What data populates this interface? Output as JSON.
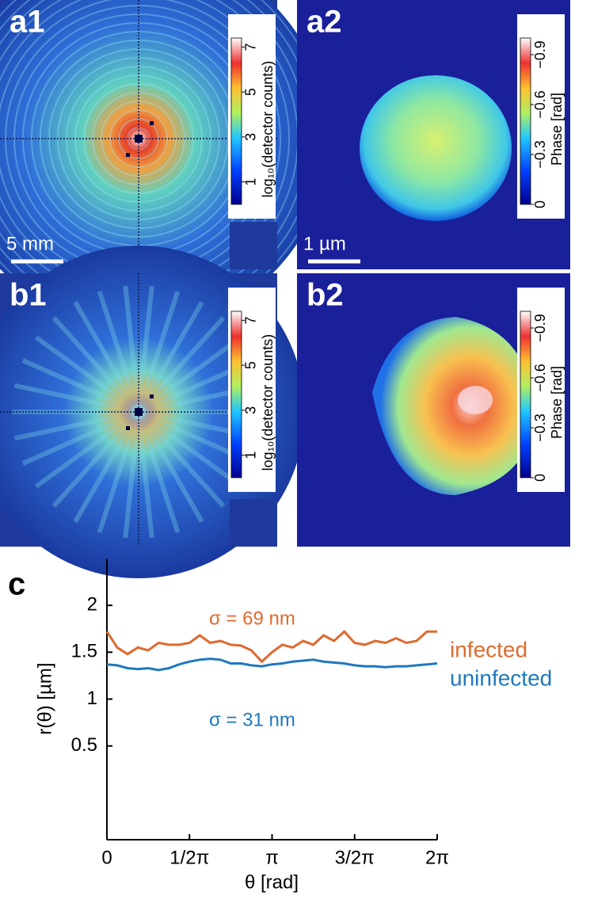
{
  "panels": [
    {
      "label": "a1",
      "scale_bar": "5 mm",
      "colorbar": {
        "title": "log₁₀(detector counts)",
        "ylim": [
          0,
          7.4
        ],
        "yticks": [
          1,
          3,
          5,
          7
        ]
      }
    },
    {
      "label": "a2",
      "scale_bar": "1 µm",
      "colorbar": {
        "title": "Phase [rad]",
        "ylim": [
          0,
          -1.0
        ],
        "yticks": [
          0,
          {
            "value": -0.3,
            "label": "−0.3"
          },
          {
            "value": -0.6,
            "label": "−0.6"
          },
          {
            "value": -0.9,
            "label": "−0.9"
          }
        ]
      }
    },
    {
      "label": "b1",
      "colorbar": {
        "title": "log₁₀(detector counts)",
        "ylim": [
          0,
          7.4
        ],
        "yticks": [
          1,
          3,
          5,
          7
        ]
      }
    },
    {
      "label": "b2",
      "colorbar": {
        "title": "Phase [rad]",
        "ylim": [
          0,
          -1.0
        ],
        "yticks": [
          0,
          {
            "value": -0.3,
            "label": "−0.3"
          },
          {
            "value": -0.6,
            "label": "−0.6"
          },
          {
            "value": -0.9,
            "label": "−0.9"
          }
        ]
      }
    }
  ],
  "chart_data": {
    "type": "line",
    "panel_label": "c",
    "x_label": "θ [rad]",
    "y_label": "r(θ) [µm]",
    "x": [
      0,
      0.196,
      0.393,
      0.589,
      0.785,
      0.982,
      1.178,
      1.374,
      1.571,
      1.767,
      1.963,
      2.16,
      2.356,
      2.553,
      2.749,
      2.945,
      3.142,
      3.338,
      3.534,
      3.731,
      3.927,
      4.123,
      4.32,
      4.516,
      4.712,
      4.909,
      5.105,
      5.301,
      5.498,
      5.694,
      5.89,
      6.087,
      6.283
    ],
    "series": [
      {
        "name": "infected",
        "color": "#de6a2f",
        "values": [
          1.72,
          1.55,
          1.48,
          1.55,
          1.52,
          1.6,
          1.58,
          1.58,
          1.6,
          1.68,
          1.6,
          1.62,
          1.58,
          1.57,
          1.52,
          1.4,
          1.5,
          1.58,
          1.55,
          1.62,
          1.58,
          1.68,
          1.62,
          1.72,
          1.6,
          1.58,
          1.62,
          1.6,
          1.65,
          1.6,
          1.62,
          1.72,
          1.72
        ]
      },
      {
        "name": "uninfected",
        "color": "#1f78bf",
        "values": [
          1.37,
          1.36,
          1.33,
          1.32,
          1.33,
          1.31,
          1.33,
          1.37,
          1.4,
          1.42,
          1.43,
          1.42,
          1.38,
          1.38,
          1.36,
          1.35,
          1.37,
          1.38,
          1.4,
          1.41,
          1.42,
          1.4,
          1.39,
          1.38,
          1.36,
          1.35,
          1.35,
          1.34,
          1.35,
          1.35,
          1.36,
          1.37,
          1.38
        ]
      }
    ],
    "annotations": [
      {
        "text": "σ = 69 nm",
        "color": "#de6a2f"
      },
      {
        "text": "σ = 31 nm",
        "color": "#1f78bf"
      }
    ],
    "xlim": [
      0,
      6.2832
    ],
    "ylim": [
      -0.5,
      2.5
    ],
    "xticks": [
      0,
      {
        "value": 1.5708,
        "label": "1/2π"
      },
      {
        "value": 3.1416,
        "label": "π"
      },
      {
        "value": 4.7124,
        "label": "3/2π"
      },
      {
        "value": 6.2832,
        "label": "2π"
      }
    ],
    "yticks": [
      0.5,
      1,
      1.5,
      2
    ]
  }
}
